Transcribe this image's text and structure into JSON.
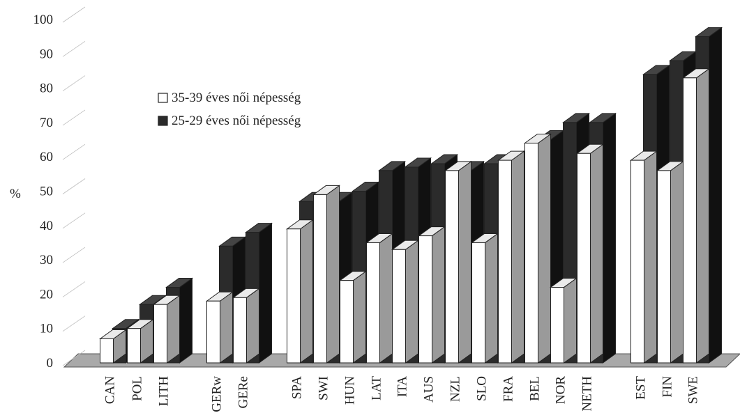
{
  "chart_data": {
    "type": "bar",
    "ylabel": "%",
    "ylim": [
      0,
      100
    ],
    "yticks": [
      0,
      10,
      20,
      30,
      40,
      50,
      60,
      70,
      80,
      90,
      100
    ],
    "categories": [
      "CAN",
      "POL",
      "LITH",
      "GERw",
      "GERe",
      "SPA",
      "SWI",
      "HUN",
      "LAT",
      "ITA",
      "AUS",
      "NZL",
      "SLO",
      "FRA",
      "BEL",
      "NOR",
      "NETH",
      "EST",
      "FIN",
      "SWE"
    ],
    "groups": [
      [
        0,
        1,
        2
      ],
      [
        3,
        4
      ],
      [
        5,
        6,
        7,
        8,
        9,
        10,
        11,
        12,
        13,
        14,
        15,
        16
      ],
      [
        17,
        18,
        19
      ]
    ],
    "series": [
      {
        "name": "35-39 éves női népesség",
        "values": [
          7,
          10,
          17,
          18,
          19,
          39,
          49,
          24,
          35,
          33,
          37,
          56,
          35,
          59,
          64,
          22,
          61,
          59,
          56,
          83
        ]
      },
      {
        "name": "25-29 éves női népesség",
        "values": [
          10,
          17,
          22,
          34,
          38,
          47,
          47,
          50,
          56,
          57,
          58,
          56,
          58,
          59,
          65,
          70,
          70,
          84,
          88,
          95
        ]
      }
    ],
    "legend_position": "top-left",
    "grid": false,
    "colors": {
      "series1": "#ffffff",
      "series2": "#2b2b2b",
      "floor": "#999999",
      "outline": "#222222"
    }
  }
}
